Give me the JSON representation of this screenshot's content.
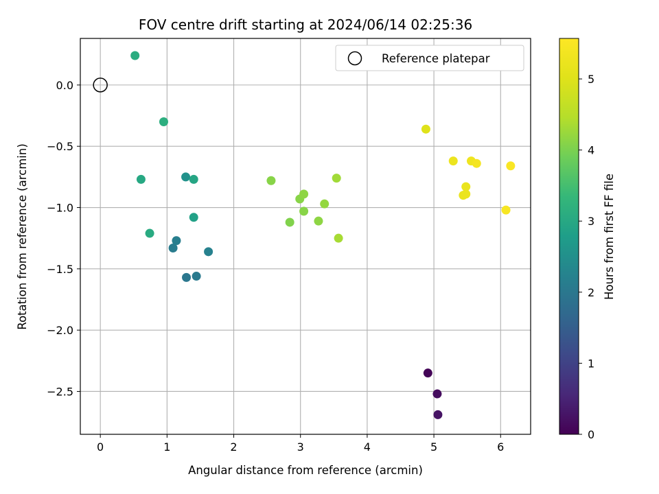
{
  "chart_data": {
    "type": "scatter",
    "title": "FOV centre drift starting at 2024/06/14 02:25:36",
    "xlabel": "Angular distance from reference (arcmin)",
    "ylabel": "Rotation from reference (arcmin)",
    "xlim": [
      -0.3,
      6.45
    ],
    "ylim": [
      -2.85,
      0.38
    ],
    "xticks": [
      0,
      1,
      2,
      3,
      4,
      5,
      6
    ],
    "xtick_labels": [
      "0",
      "1",
      "2",
      "3",
      "4",
      "5",
      "6"
    ],
    "yticks": [
      0.0,
      -0.5,
      -1.0,
      -1.5,
      -2.0,
      -2.5
    ],
    "ytick_labels": [
      "0.0",
      "−0.5",
      "−1.0",
      "−1.5",
      "−2.0",
      "−2.5"
    ],
    "grid": true,
    "colormap": "viridis",
    "colorbar": {
      "label": "Hours from first FF file",
      "range": [
        0,
        5.57
      ],
      "ticks": [
        0,
        1,
        2,
        3,
        4,
        5
      ],
      "tick_labels": [
        "0",
        "1",
        "2",
        "3",
        "4",
        "5"
      ]
    },
    "legend": {
      "placement": "top-right",
      "entries": [
        {
          "label": "Reference platepar",
          "marker": "hollow-circle",
          "x": 0,
          "y": 0
        }
      ]
    },
    "points": [
      {
        "x": 4.91,
        "y": -2.35,
        "hours": 0.05
      },
      {
        "x": 5.05,
        "y": -2.52,
        "hours": 0.15
      },
      {
        "x": 5.06,
        "y": -2.69,
        "hours": 0.25
      },
      {
        "x": 1.29,
        "y": -1.57,
        "hours": 2.0
      },
      {
        "x": 1.44,
        "y": -1.56,
        "hours": 2.05
      },
      {
        "x": 1.09,
        "y": -1.33,
        "hours": 2.1
      },
      {
        "x": 1.14,
        "y": -1.27,
        "hours": 2.15
      },
      {
        "x": 1.62,
        "y": -1.36,
        "hours": 2.2
      },
      {
        "x": 1.28,
        "y": -0.75,
        "hours": 2.55
      },
      {
        "x": 1.4,
        "y": -1.08,
        "hours": 2.85
      },
      {
        "x": 1.4,
        "y": -0.77,
        "hours": 2.95
      },
      {
        "x": 0.61,
        "y": -0.77,
        "hours": 3.0
      },
      {
        "x": 0.74,
        "y": -1.21,
        "hours": 3.05
      },
      {
        "x": 0.52,
        "y": 0.24,
        "hours": 3.1
      },
      {
        "x": 0.95,
        "y": -0.3,
        "hours": 3.15
      },
      {
        "x": 2.56,
        "y": -0.78,
        "hours": 4.1
      },
      {
        "x": 2.84,
        "y": -1.12,
        "hours": 4.05
      },
      {
        "x": 2.99,
        "y": -0.93,
        "hours": 4.1
      },
      {
        "x": 3.05,
        "y": -0.89,
        "hours": 4.15
      },
      {
        "x": 3.05,
        "y": -1.03,
        "hours": 4.1
      },
      {
        "x": 3.27,
        "y": -1.11,
        "hours": 4.15
      },
      {
        "x": 3.36,
        "y": -0.97,
        "hours": 4.2
      },
      {
        "x": 3.54,
        "y": -0.76,
        "hours": 4.3
      },
      {
        "x": 3.57,
        "y": -1.25,
        "hours": 4.35
      },
      {
        "x": 4.88,
        "y": -0.36,
        "hours": 5.0
      },
      {
        "x": 5.29,
        "y": -0.62,
        "hours": 5.25
      },
      {
        "x": 5.56,
        "y": -0.62,
        "hours": 5.3
      },
      {
        "x": 5.64,
        "y": -0.64,
        "hours": 5.4
      },
      {
        "x": 5.48,
        "y": -0.83,
        "hours": 5.2
      },
      {
        "x": 5.44,
        "y": -0.9,
        "hours": 5.2
      },
      {
        "x": 5.48,
        "y": -0.89,
        "hours": 5.22
      },
      {
        "x": 6.15,
        "y": -0.66,
        "hours": 5.5
      },
      {
        "x": 6.08,
        "y": -1.02,
        "hours": 5.45
      }
    ]
  }
}
